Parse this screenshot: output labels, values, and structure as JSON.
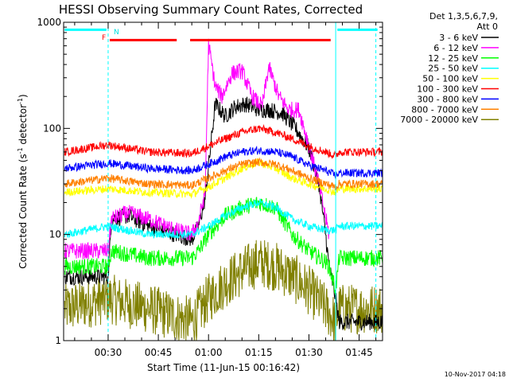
{
  "chart_data": {
    "type": "line",
    "title": "HESSI Observing Summary Count Rates, Corrected",
    "xlabel": "Start Time (11-Jun-15 00:16:42)",
    "ylabel": "Corrected Count Rate (s⁻¹ detector⁻¹)",
    "ylabel_main": "Corrected Count Rate (s",
    "ylabel_mid": " detector",
    "ylabel_end": ")",
    "ylabel_sup": "-1",
    "xlim_min": [
      16.7,
      112
    ],
    "x_ticks_min": [
      30,
      45,
      60,
      75,
      90,
      105
    ],
    "x_tick_labels": [
      "00:30",
      "00:45",
      "01:00",
      "01:15",
      "01:30",
      "01:45"
    ],
    "yscale": "log",
    "ylim": [
      1,
      1000
    ],
    "y_ticks": [
      1,
      10,
      100,
      1000
    ],
    "y_tick_labels": [
      "1",
      "10",
      "100",
      "1000"
    ],
    "legend_header": [
      "Det 1,3,5,6,7,9,",
      "Att 0"
    ],
    "legend_position": "right",
    "series": [
      {
        "name": "3 - 6 keV",
        "color": "#000000",
        "x": [
          17,
          30,
          31,
          36,
          42,
          50,
          55,
          57,
          59,
          62,
          65,
          68,
          71,
          75,
          78,
          82,
          86,
          90,
          93,
          95,
          96,
          98,
          99,
          104,
          112
        ],
        "y": [
          4,
          4,
          14,
          15,
          12,
          10,
          9,
          12,
          22,
          170,
          130,
          160,
          170,
          150,
          150,
          140,
          100,
          65,
          30,
          10,
          5,
          2.5,
          1.5,
          1.5,
          1.5
        ]
      },
      {
        "name": "6 - 12 keV",
        "color": "#ff00ff",
        "x": [
          17,
          30,
          31,
          36,
          42,
          50,
          55,
          57,
          59,
          60,
          62,
          64,
          67,
          70,
          73,
          76,
          78,
          81,
          84,
          87,
          90,
          93,
          96
        ],
        "y": [
          7,
          7,
          14,
          16,
          14,
          11,
          10,
          13,
          25,
          620,
          250,
          200,
          330,
          350,
          200,
          160,
          380,
          200,
          150,
          150,
          70,
          30,
          10
        ]
      },
      {
        "name": "12 - 25 keV",
        "color": "#00ff00",
        "x": [
          17,
          30,
          31,
          42,
          55,
          57,
          60,
          65,
          70,
          75,
          80,
          85,
          90,
          95,
          96,
          98,
          99,
          104,
          112
        ],
        "y": [
          5,
          5,
          7,
          6,
          6,
          7,
          10,
          15,
          18,
          20,
          18,
          10,
          7,
          5.5,
          5,
          3,
          6,
          6,
          6
        ]
      },
      {
        "name": "25 - 50 keV",
        "color": "#00ffff",
        "x": [
          17,
          30,
          42,
          55,
          60,
          65,
          70,
          75,
          80,
          85,
          90,
          95,
          98,
          99,
          112
        ],
        "y": [
          10,
          12,
          10,
          10,
          12,
          15,
          18,
          20,
          18,
          14,
          12,
          11,
          11,
          12,
          12
        ]
      },
      {
        "name": "50 - 100 keV",
        "color": "#ffff00",
        "x": [
          17,
          30,
          42,
          55,
          60,
          65,
          70,
          75,
          80,
          85,
          90,
          95,
          98,
          99,
          112
        ],
        "y": [
          25,
          27,
          25,
          24,
          28,
          34,
          42,
          48,
          42,
          34,
          30,
          27,
          25,
          27,
          27
        ]
      },
      {
        "name": "100 - 300 keV",
        "color": "#ff0000",
        "x": [
          17,
          30,
          42,
          55,
          60,
          65,
          70,
          75,
          80,
          85,
          90,
          95,
          98,
          99,
          112
        ],
        "y": [
          60,
          70,
          60,
          58,
          68,
          80,
          92,
          100,
          92,
          80,
          68,
          60,
          55,
          60,
          60
        ]
      },
      {
        "name": "300 - 800 keV",
        "color": "#0000ff",
        "x": [
          17,
          30,
          42,
          55,
          60,
          65,
          70,
          75,
          80,
          85,
          90,
          95,
          98,
          99,
          112
        ],
        "y": [
          42,
          47,
          42,
          40,
          46,
          54,
          60,
          62,
          60,
          54,
          45,
          40,
          36,
          38,
          38
        ]
      },
      {
        "name": "800 - 7000 keV",
        "color": "#ff8000",
        "x": [
          17,
          30,
          42,
          55,
          60,
          65,
          70,
          75,
          80,
          85,
          90,
          95,
          98,
          99,
          112
        ],
        "y": [
          30,
          34,
          30,
          29,
          34,
          40,
          46,
          48,
          46,
          40,
          34,
          30,
          28,
          30,
          30
        ]
      },
      {
        "name": "7000 - 20000 keV",
        "color": "#808000",
        "x": [
          17,
          30,
          42,
          55,
          60,
          65,
          70,
          75,
          80,
          85,
          90,
          95,
          98,
          99,
          112
        ],
        "y": [
          2,
          2.5,
          2,
          1.5,
          2.5,
          3.5,
          4.5,
          5.5,
          5,
          4,
          3,
          2,
          1.5,
          2,
          2
        ]
      }
    ],
    "annotations": {
      "flag_letters": [
        "F",
        "N"
      ],
      "night_bars_min": [
        [
          17,
          29.5
        ],
        [
          98.5,
          110.5
        ]
      ],
      "night_level": 850,
      "saa_bars_min": [
        [
          30.5,
          50.5
        ],
        [
          54.5,
          96.5
        ]
      ],
      "saa_level": 680,
      "dashed_lines_min": [
        30,
        110
      ],
      "solid_line_min": 98
    },
    "footer_date": "10-Nov-2017 04:18"
  }
}
